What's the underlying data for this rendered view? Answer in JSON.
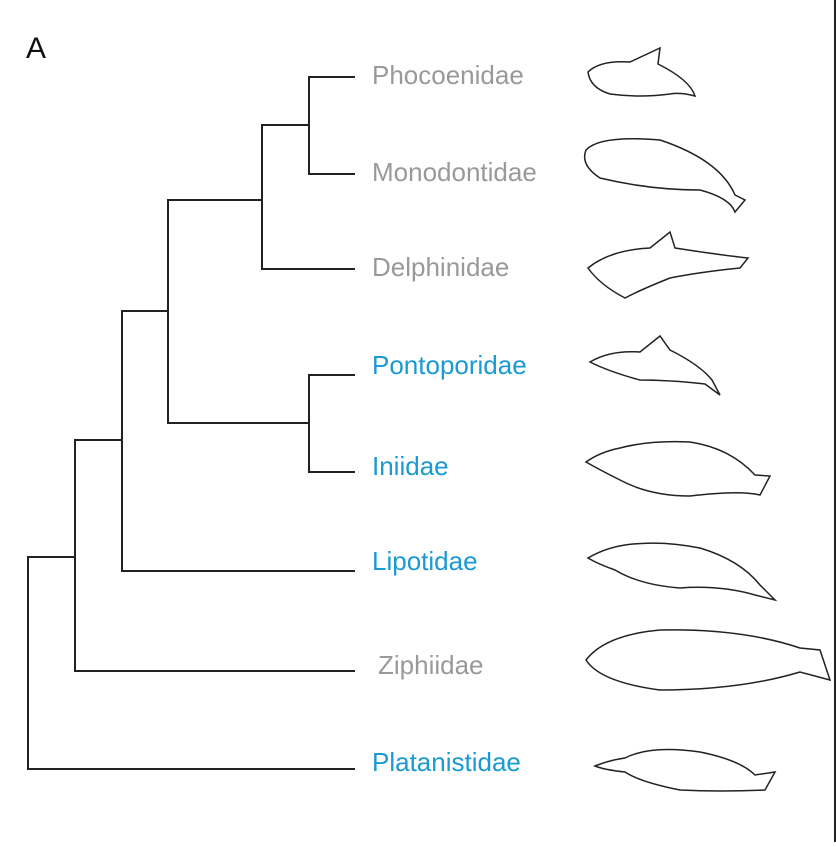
{
  "panel_label": "A",
  "taxa": [
    {
      "label": "Phocoenidae",
      "color": "#999999"
    },
    {
      "label": "Monodontidae",
      "color": "#999999"
    },
    {
      "label": "Delphinidae",
      "color": "#999999"
    },
    {
      "label": "Pontoporidae",
      "color": "#1a9ad2"
    },
    {
      "label": "Iniidae",
      "color": "#1a9ad2"
    },
    {
      "label": "Lipotidae",
      "color": "#1a9ad2"
    },
    {
      "label": "Ziphiidae",
      "color": "#999999"
    },
    {
      "label": "Platanistidae",
      "color": "#1a9ad2"
    }
  ]
}
